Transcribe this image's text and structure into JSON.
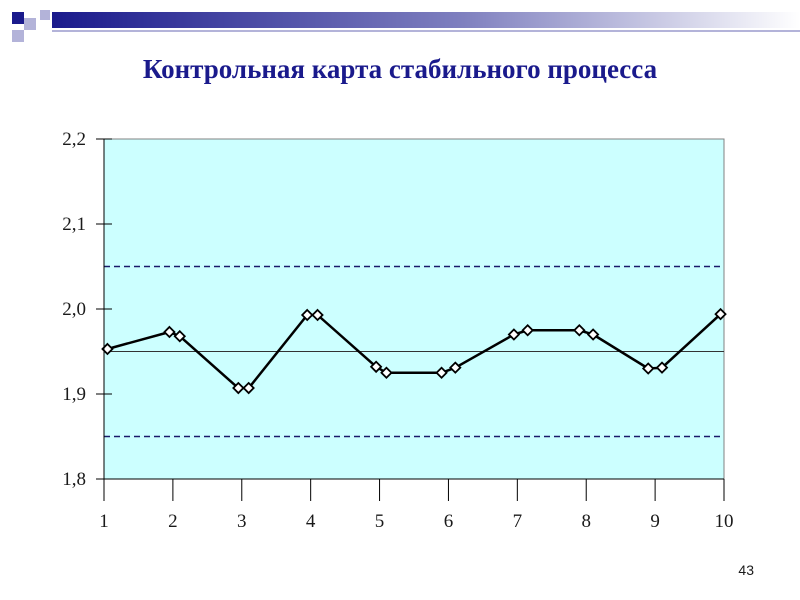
{
  "slide": {
    "title": "Контрольная карта стабильного процесса",
    "page_number": "43"
  },
  "colors": {
    "accent": "#1a1a8c",
    "plot_bg": "#ccffff",
    "control_limit": "#1a1a6c",
    "series": "#000000"
  },
  "chart_data": {
    "type": "line",
    "title": "",
    "xlabel": "",
    "ylabel": "",
    "x_ticks": [
      "1",
      "2",
      "3",
      "4",
      "5",
      "6",
      "7",
      "8",
      "9",
      "10"
    ],
    "y_ticks": [
      "1,8",
      "1,9",
      "2,0",
      "2,1",
      "2,2"
    ],
    "xlim": [
      1,
      10
    ],
    "ylim": [
      1.8,
      2.2
    ],
    "grid": false,
    "center_line": 1.95,
    "upper_control_limit": 2.05,
    "lower_control_limit": 1.85,
    "series": [
      {
        "x": [
          1.05,
          1.95,
          2.1,
          2.95,
          3.1,
          3.95,
          4.1,
          4.95,
          5.1,
          5.9,
          6.1,
          6.95,
          7.15,
          7.9,
          8.1,
          8.9,
          9.1,
          9.95
        ],
        "y": [
          1.953,
          1.973,
          1.968,
          1.907,
          1.907,
          1.993,
          1.993,
          1.932,
          1.925,
          1.925,
          1.931,
          1.97,
          1.975,
          1.975,
          1.97,
          1.93,
          1.931,
          1.994
        ]
      }
    ]
  }
}
